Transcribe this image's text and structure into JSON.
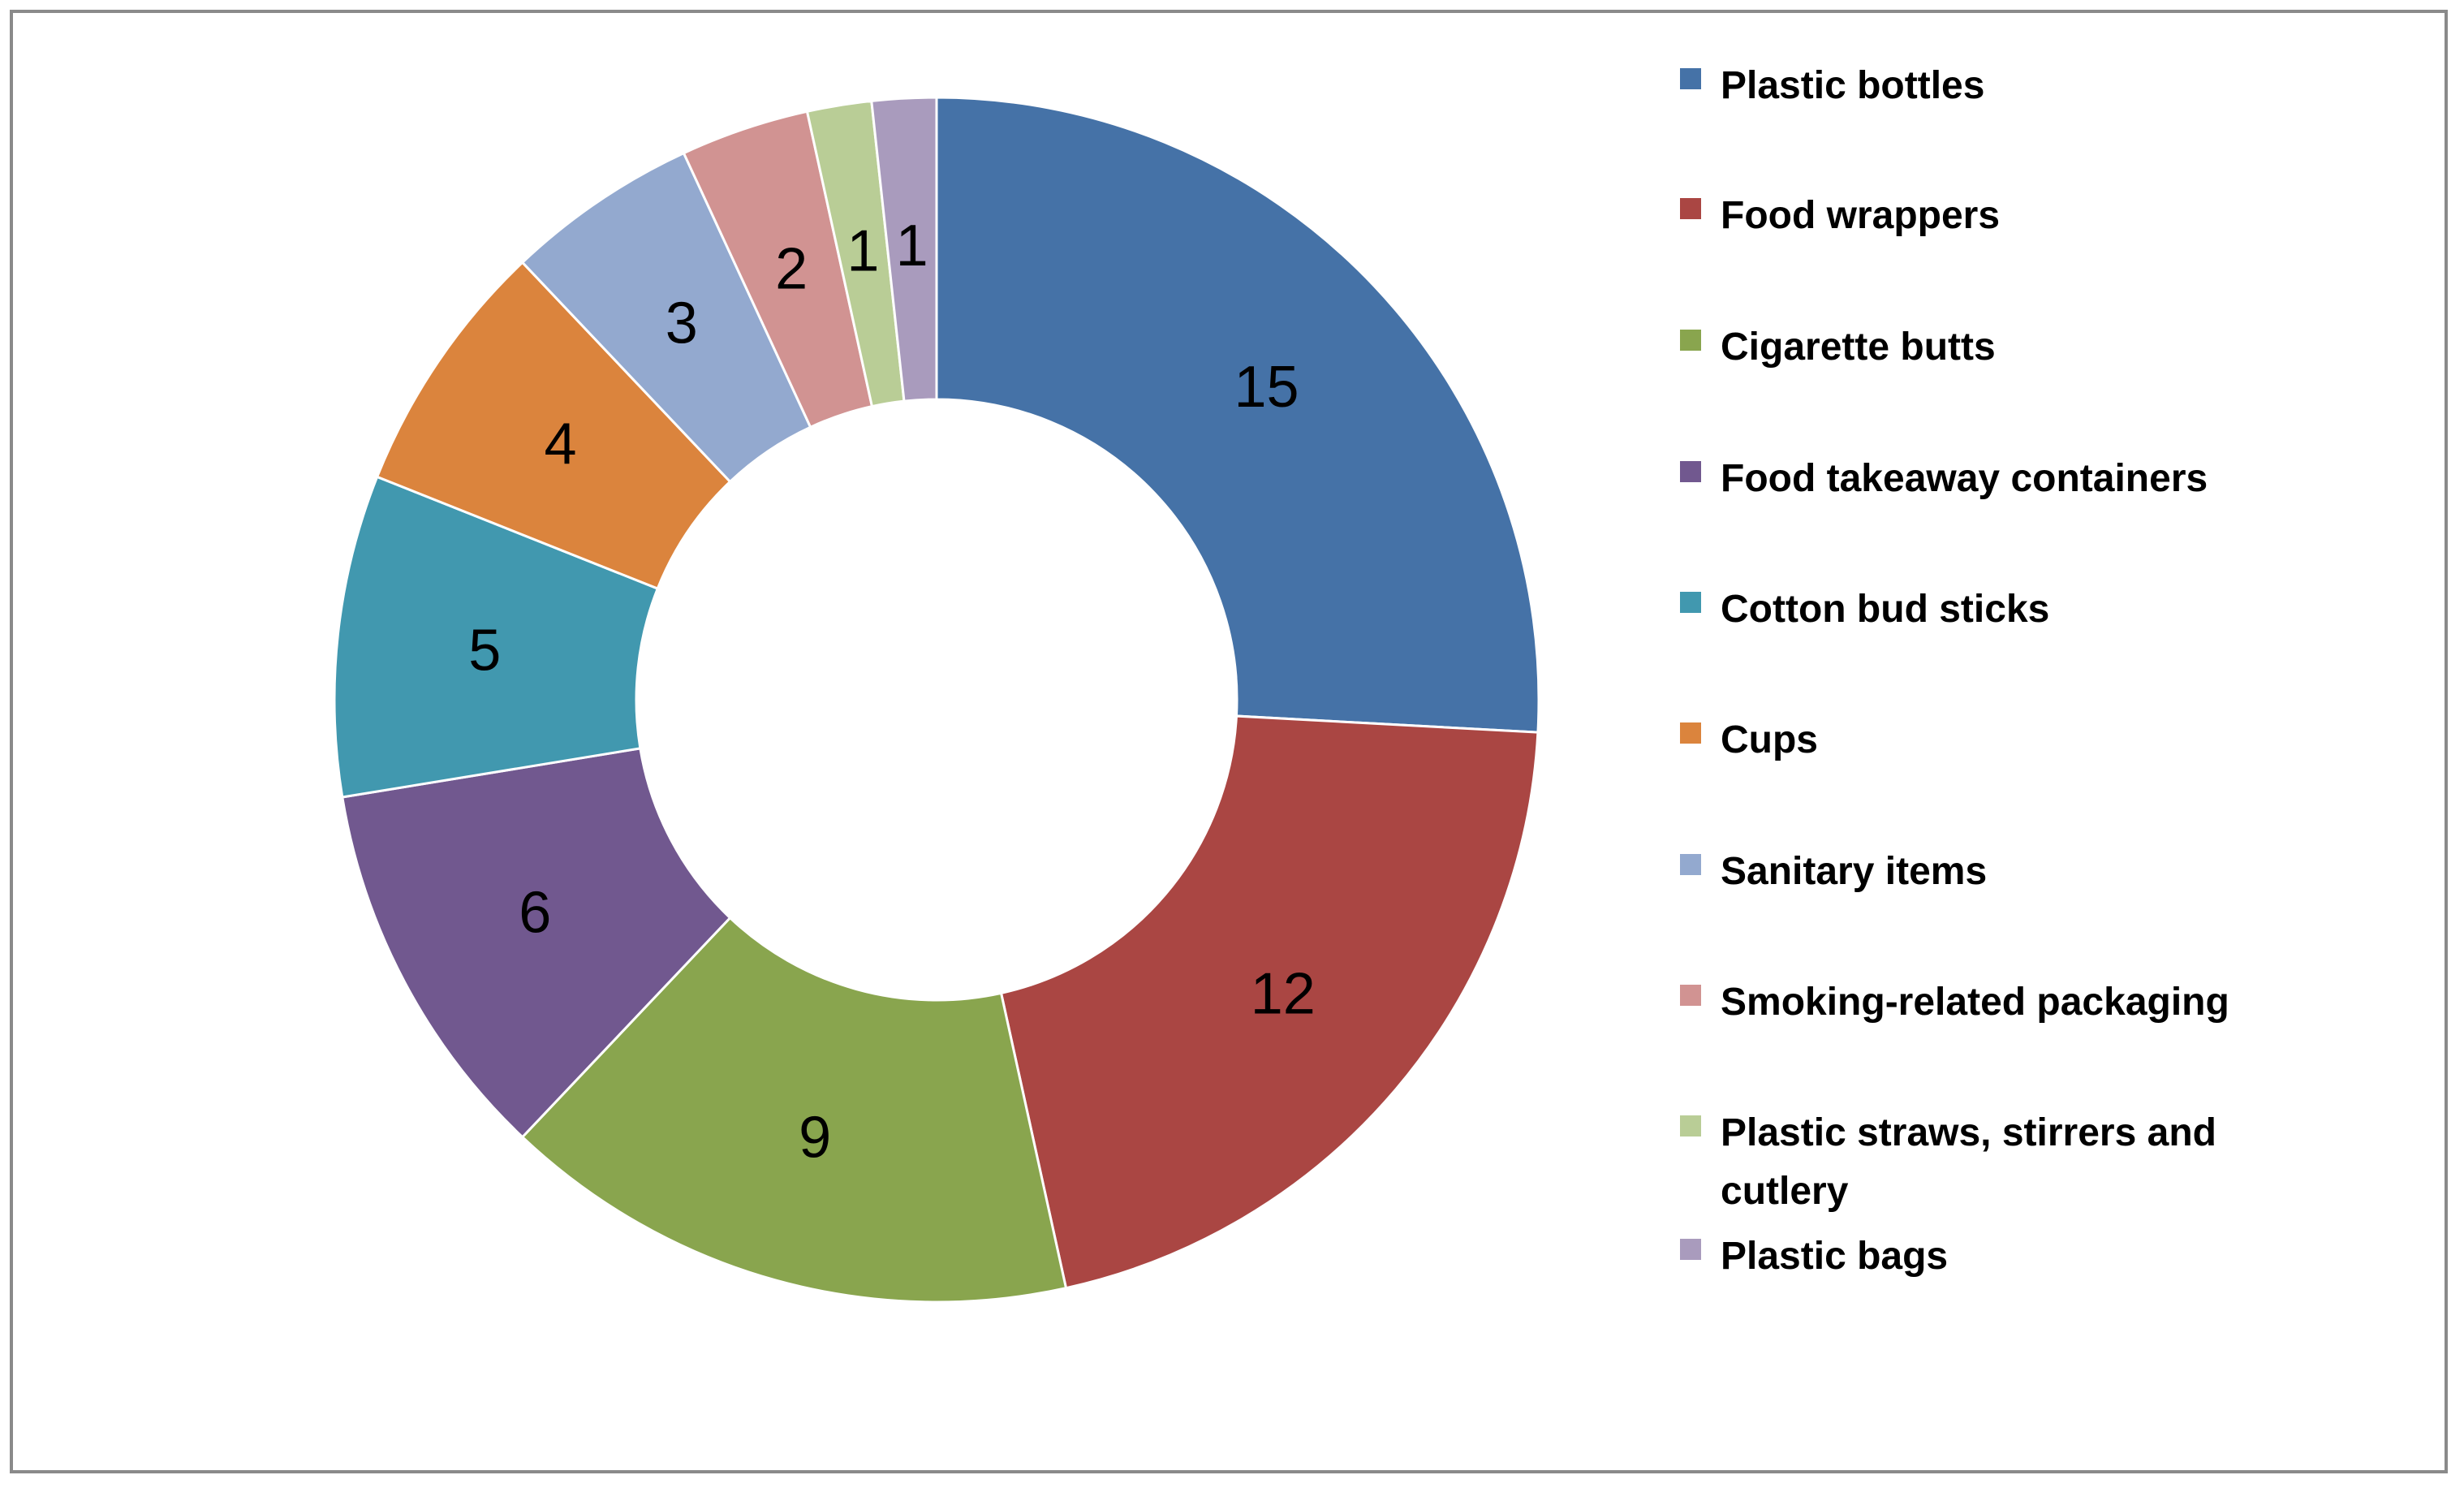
{
  "chart_data": {
    "type": "pie",
    "variant": "donut",
    "title": "",
    "categories": [
      "Plastic bottles",
      "Food wrappers",
      "Cigarette butts",
      "Food takeaway containers",
      "Cotton bud sticks",
      "Cups",
      "Sanitary items",
      "Smoking-related packaging",
      "Plastic straws, stirrers and cutlery",
      "Plastic bags"
    ],
    "values": [
      15,
      12,
      9,
      6,
      5,
      4,
      3,
      2,
      1,
      1
    ],
    "colors": [
      "#4572a7",
      "#aa4643",
      "#89a54e",
      "#71588f",
      "#4198af",
      "#db843d",
      "#93a9cf",
      "#d19392",
      "#b9cd96",
      "#a99bbd"
    ],
    "legend_position": "right",
    "data_labels": true
  }
}
